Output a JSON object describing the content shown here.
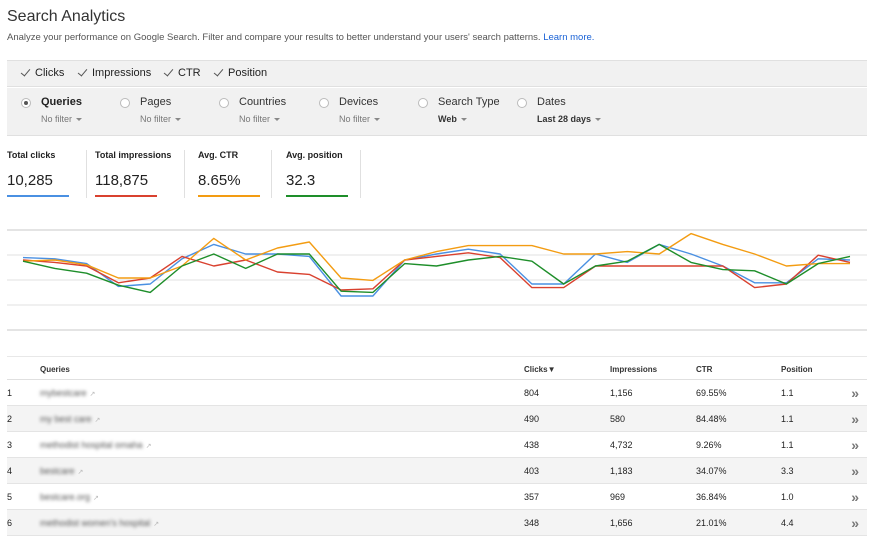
{
  "header": {
    "title": "Search Analytics",
    "subtitle": "Analyze your performance on Google Search. Filter and compare your results to better understand your users' search patterns.",
    "learn_more": "Learn more."
  },
  "metric_toggles": [
    {
      "label": "Clicks",
      "checked": true
    },
    {
      "label": "Impressions",
      "checked": true
    },
    {
      "label": "CTR",
      "checked": true
    },
    {
      "label": "Position",
      "checked": true
    }
  ],
  "filters": [
    {
      "label": "Queries",
      "value": "No filter",
      "selected": true
    },
    {
      "label": "Pages",
      "value": "No filter",
      "selected": false
    },
    {
      "label": "Countries",
      "value": "No filter",
      "selected": false
    },
    {
      "label": "Devices",
      "value": "No filter",
      "selected": false
    },
    {
      "label": "Search Type",
      "value": "Web",
      "selected": false
    },
    {
      "label": "Dates",
      "value": "Last 28 days",
      "selected": false
    }
  ],
  "metrics": [
    {
      "label": "Total clicks",
      "value": "10,285",
      "color": "#4a90e2"
    },
    {
      "label": "Total impressions",
      "value": "118,875",
      "color": "#d9412f"
    },
    {
      "label": "Avg. CTR",
      "value": "8.65%",
      "color": "#f39c12"
    },
    {
      "label": "Avg. position",
      "value": "32.3",
      "color": "#1e8e2a"
    }
  ],
  "chart_data": {
    "type": "line",
    "grid": true,
    "series": [
      {
        "color": "#4a90e2",
        "values": [
          37,
          36,
          32,
          13,
          15,
          36,
          48,
          40,
          40,
          38,
          5,
          5,
          35,
          40,
          44,
          40,
          15,
          15,
          40,
          33,
          48,
          40,
          30,
          16,
          16,
          36,
          35
        ]
      },
      {
        "color": "#d9412f",
        "values": [
          35,
          33,
          30,
          16,
          20,
          38,
          30,
          35,
          25,
          23,
          10,
          11,
          35,
          38,
          41,
          37,
          12,
          12,
          30,
          30,
          30,
          30,
          30,
          12,
          15,
          39,
          33
        ]
      },
      {
        "color": "#f39c12",
        "values": [
          34,
          35,
          31,
          20,
          20,
          30,
          53,
          35,
          45,
          50,
          20,
          18,
          35,
          42,
          47,
          47,
          47,
          40,
          40,
          42,
          40,
          57,
          48,
          40,
          30,
          32,
          32
        ]
      },
      {
        "color": "#1e8e2a",
        "values": [
          34,
          28,
          24,
          14,
          8,
          30,
          40,
          28,
          40,
          40,
          9,
          8,
          32,
          30,
          35,
          38,
          34,
          15,
          30,
          34,
          48,
          33,
          27,
          26,
          15,
          32,
          38
        ]
      }
    ]
  },
  "table": {
    "headers": {
      "queries": "Queries",
      "clicks": "Clicks▼",
      "impressions": "Impressions",
      "ctr": "CTR",
      "position": "Position"
    },
    "rows": [
      {
        "num": "1",
        "query": "mybestcare",
        "clicks": "804",
        "impressions": "1,156",
        "ctr": "69.55%",
        "position": "1.1"
      },
      {
        "num": "2",
        "query": "my best care",
        "clicks": "490",
        "impressions": "580",
        "ctr": "84.48%",
        "position": "1.1"
      },
      {
        "num": "3",
        "query": "methodist hospital omaha",
        "clicks": "438",
        "impressions": "4,732",
        "ctr": "9.26%",
        "position": "1.1"
      },
      {
        "num": "4",
        "query": "bestcare",
        "clicks": "403",
        "impressions": "1,183",
        "ctr": "34.07%",
        "position": "3.3"
      },
      {
        "num": "5",
        "query": "bestcare.org",
        "clicks": "357",
        "impressions": "969",
        "ctr": "36.84%",
        "position": "1.0"
      },
      {
        "num": "6",
        "query": "methodist women's hospital",
        "clicks": "348",
        "impressions": "1,656",
        "ctr": "21.01%",
        "position": "4.4"
      }
    ]
  }
}
